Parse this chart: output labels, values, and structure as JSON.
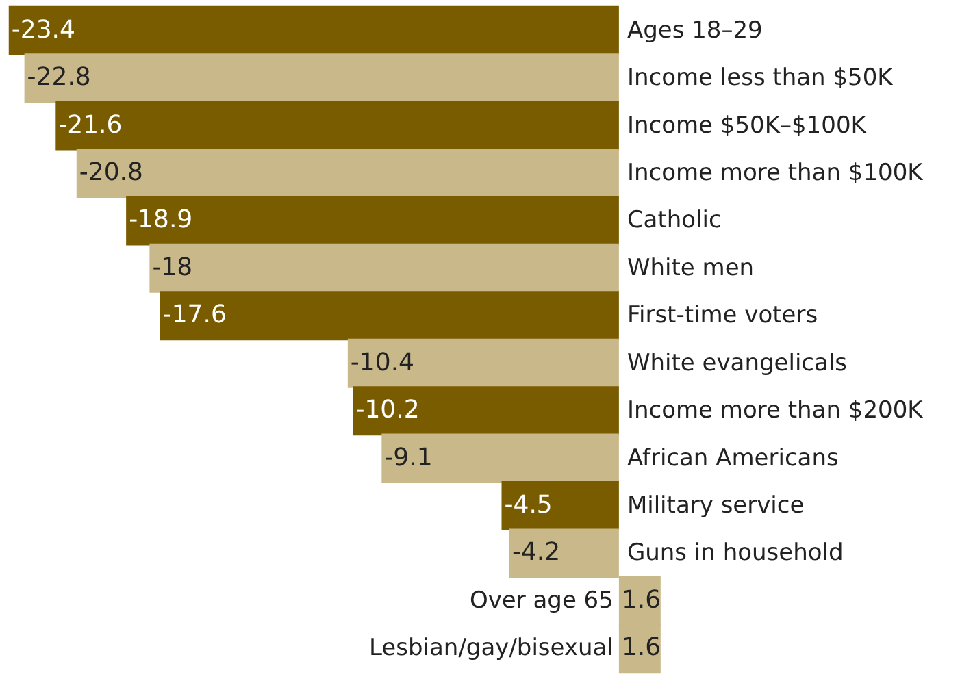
{
  "chart_data": {
    "type": "bar",
    "orientation": "horizontal",
    "categories": [
      "Ages 18–29",
      "Income less than $50K",
      "Income $50K–$100K",
      "Income more than $100K",
      "Catholic",
      "White men",
      "First-time voters",
      "White evangelicals",
      "Income more than $200K",
      "African Americans",
      "Military service",
      "Guns in household",
      "Over age 65",
      "Lesbian/gay/bisexual"
    ],
    "values": [
      -23.4,
      -22.8,
      -21.6,
      -20.8,
      -18.9,
      -18,
      -17.6,
      -10.4,
      -10.2,
      -9.1,
      -4.5,
      -4.2,
      1.6,
      1.6
    ],
    "colors": [
      "#7a5c00",
      "#c9b98a",
      "#7a5c00",
      "#c9b98a",
      "#7a5c00",
      "#c9b98a",
      "#7a5c00",
      "#c9b98a",
      "#7a5c00",
      "#c9b98a",
      "#7a5c00",
      "#c9b98a",
      "#c9b98a",
      "#c9b98a"
    ],
    "data_labels": true
  }
}
